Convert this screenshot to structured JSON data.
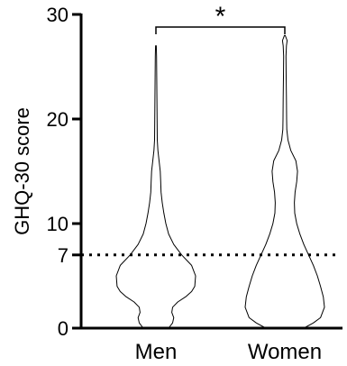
{
  "chart_data": {
    "type": "violin",
    "title": "",
    "xlabel": "",
    "ylabel": "GHQ-30 score",
    "ylim": [
      0,
      30
    ],
    "yticks": [
      0,
      7,
      10,
      20,
      30
    ],
    "categories": [
      "Men",
      "Women"
    ],
    "reference_line": {
      "value": 7,
      "style": "dotted"
    },
    "significance": {
      "between": [
        "Men",
        "Women"
      ],
      "label": "*"
    },
    "series": [
      {
        "category": "Men",
        "range": [
          0,
          27
        ],
        "density": [
          [
            0,
            0.32
          ],
          [
            0.5,
            0.42
          ],
          [
            1,
            0.45
          ],
          [
            1.5,
            0.4
          ],
          [
            2,
            0.42
          ],
          [
            2.5,
            0.55
          ],
          [
            3,
            0.75
          ],
          [
            3.5,
            0.9
          ],
          [
            4,
            0.98
          ],
          [
            5,
            1.0
          ],
          [
            6,
            0.9
          ],
          [
            7,
            0.65
          ],
          [
            8,
            0.45
          ],
          [
            9,
            0.32
          ],
          [
            10,
            0.25
          ],
          [
            11,
            0.2
          ],
          [
            12,
            0.16
          ],
          [
            13,
            0.13
          ],
          [
            14,
            0.12
          ],
          [
            15,
            0.11
          ],
          [
            16,
            0.08
          ],
          [
            17,
            0.05
          ],
          [
            18,
            0.035
          ],
          [
            20,
            0.03
          ],
          [
            22,
            0.025
          ],
          [
            24,
            0.02
          ],
          [
            26,
            0.015
          ],
          [
            27,
            0.01
          ]
        ]
      },
      {
        "category": "Women",
        "range": [
          0,
          28
        ],
        "density": [
          [
            0,
            0.48
          ],
          [
            0.5,
            0.72
          ],
          [
            1,
            0.9
          ],
          [
            2,
            1.0
          ],
          [
            3,
            0.97
          ],
          [
            4,
            0.9
          ],
          [
            5,
            0.82
          ],
          [
            6,
            0.72
          ],
          [
            7,
            0.6
          ],
          [
            8,
            0.48
          ],
          [
            9,
            0.38
          ],
          [
            10,
            0.3
          ],
          [
            11,
            0.25
          ],
          [
            12,
            0.24
          ],
          [
            13,
            0.26
          ],
          [
            14,
            0.3
          ],
          [
            15,
            0.32
          ],
          [
            16,
            0.28
          ],
          [
            17,
            0.15
          ],
          [
            18,
            0.08
          ],
          [
            19,
            0.05
          ],
          [
            20,
            0.045
          ],
          [
            22,
            0.04
          ],
          [
            24,
            0.035
          ],
          [
            26,
            0.03
          ],
          [
            27,
            0.04
          ],
          [
            27.5,
            0.06
          ],
          [
            28,
            0.01
          ]
        ]
      }
    ]
  }
}
